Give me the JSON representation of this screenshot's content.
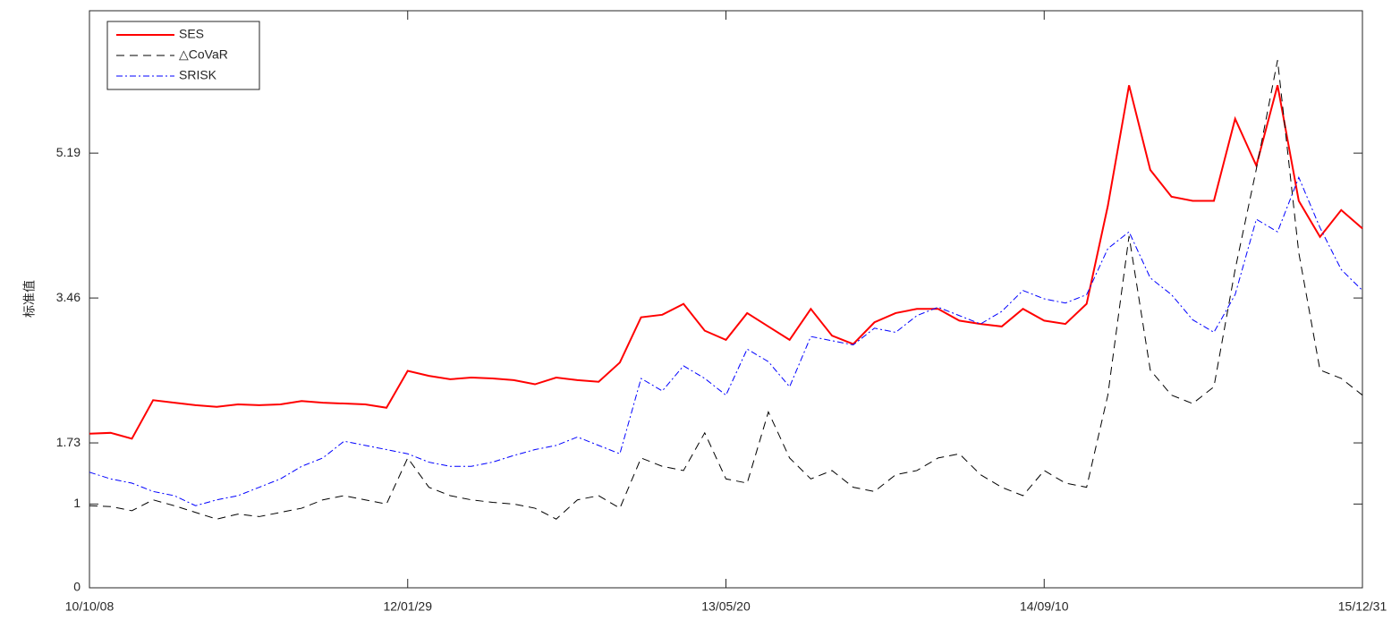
{
  "chart_data": {
    "type": "line",
    "y_label": "标准值",
    "categories": [
      "10/10/08",
      null,
      null,
      null,
      null,
      null,
      null,
      null,
      null,
      null,
      null,
      null,
      null,
      null,
      null,
      "12/01/29",
      null,
      null,
      null,
      null,
      null,
      null,
      null,
      null,
      null,
      null,
      null,
      null,
      null,
      null,
      "13/05/20",
      null,
      null,
      null,
      null,
      null,
      null,
      null,
      null,
      null,
      null,
      null,
      null,
      null,
      null,
      "14/09/10",
      null,
      null,
      null,
      null,
      null,
      null,
      null,
      null,
      null,
      null,
      null,
      null,
      null,
      null,
      "15/12/31"
    ],
    "ylim": [
      0,
      6.89
    ],
    "yticks": [
      0,
      1,
      1.73,
      3.46,
      5.19
    ],
    "legend": "upper left",
    "series": [
      {
        "name": "SES",
        "color": "#ff0000",
        "style": "solid",
        "values": [
          1.84,
          1.85,
          1.78,
          2.24,
          2.21,
          2.18,
          2.16,
          2.19,
          2.18,
          2.19,
          2.23,
          2.21,
          2.2,
          2.19,
          2.15,
          2.59,
          2.53,
          2.49,
          2.51,
          2.5,
          2.48,
          2.43,
          2.51,
          2.48,
          2.46,
          2.69,
          3.23,
          3.26,
          3.39,
          3.07,
          2.96,
          3.28,
          3.12,
          2.96,
          3.33,
          3.01,
          2.91,
          3.17,
          3.28,
          3.33,
          3.33,
          3.19,
          3.15,
          3.12,
          3.33,
          3.19,
          3.15,
          3.39,
          4.56,
          6.0,
          4.99,
          4.67,
          4.62,
          4.62,
          5.6,
          5.04,
          6.0,
          4.62,
          4.19,
          4.51,
          4.29
        ]
      },
      {
        "name": "△CoVaR",
        "color": "#000000",
        "style": "dashed",
        "values": [
          0.98,
          0.97,
          0.92,
          1.05,
          0.98,
          0.9,
          0.82,
          0.88,
          0.85,
          0.9,
          0.95,
          1.05,
          1.1,
          1.05,
          1.0,
          1.55,
          1.2,
          1.1,
          1.05,
          1.02,
          1.0,
          0.95,
          0.82,
          1.05,
          1.1,
          0.95,
          1.55,
          1.45,
          1.4,
          1.85,
          1.3,
          1.25,
          2.1,
          1.55,
          1.3,
          1.4,
          1.2,
          1.15,
          1.35,
          1.4,
          1.55,
          1.6,
          1.35,
          1.2,
          1.1,
          1.4,
          1.25,
          1.2,
          2.3,
          4.2,
          2.6,
          2.3,
          2.2,
          2.4,
          3.8,
          5.0,
          6.3,
          4.0,
          2.6,
          2.5,
          2.3
        ]
      },
      {
        "name": "SRISK",
        "color": "#0000ff",
        "style": "dashdot",
        "values": [
          1.38,
          1.3,
          1.25,
          1.15,
          1.1,
          0.98,
          1.05,
          1.1,
          1.2,
          1.3,
          1.45,
          1.55,
          1.75,
          1.7,
          1.65,
          1.6,
          1.5,
          1.45,
          1.45,
          1.5,
          1.58,
          1.65,
          1.7,
          1.8,
          1.7,
          1.6,
          2.5,
          2.35,
          2.65,
          2.5,
          2.3,
          2.85,
          2.7,
          2.4,
          3.0,
          2.95,
          2.9,
          3.1,
          3.05,
          3.25,
          3.35,
          3.25,
          3.15,
          3.3,
          3.55,
          3.45,
          3.4,
          3.5,
          4.05,
          4.25,
          3.7,
          3.5,
          3.2,
          3.05,
          3.5,
          4.4,
          4.25,
          4.9,
          4.3,
          3.8,
          3.55
        ]
      }
    ]
  }
}
